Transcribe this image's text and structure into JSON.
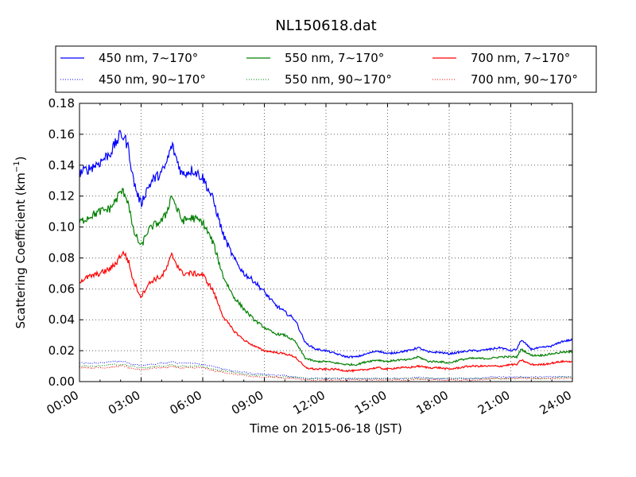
{
  "chart_data": {
    "type": "line",
    "title": "NL150618.dat",
    "xlabel": "Time on 2015-06-18 (JST)",
    "ylabel": {
      "main": "Scattering Coefficient (km",
      "sup": "−1",
      "tail": ")"
    },
    "x_unit": "hours",
    "xlim": [
      0,
      24
    ],
    "ylim": [
      0.0,
      0.18
    ],
    "x_ticks": [
      0,
      3,
      6,
      9,
      12,
      15,
      18,
      21,
      24
    ],
    "x_tick_labels": [
      "00:00",
      "03:00",
      "06:00",
      "09:00",
      "12:00",
      "15:00",
      "18:00",
      "21:00",
      "24:00"
    ],
    "y_ticks": [
      0.0,
      0.02,
      0.04,
      0.06,
      0.08,
      0.1,
      0.12,
      0.14,
      0.16,
      0.18
    ],
    "y_tick_labels": [
      "0.00",
      "0.02",
      "0.04",
      "0.06",
      "0.08",
      "0.10",
      "0.12",
      "0.14",
      "0.16",
      "0.18"
    ],
    "grid": true,
    "legend_position": "top",
    "x": [
      0,
      0.5,
      1.0,
      1.5,
      1.8,
      2.0,
      2.2,
      2.4,
      2.6,
      2.8,
      3.0,
      3.3,
      3.6,
      4.0,
      4.2,
      4.5,
      4.7,
      5.0,
      5.5,
      6.0,
      6.5,
      7.0,
      7.5,
      8.0,
      8.5,
      9.0,
      9.5,
      10.0,
      10.5,
      11.0,
      11.5,
      12.0,
      12.5,
      13.0,
      13.5,
      14.0,
      14.5,
      15.0,
      15.5,
      16.0,
      16.5,
      17.0,
      17.5,
      18.0,
      18.5,
      19.0,
      19.5,
      20.0,
      20.5,
      21.0,
      21.3,
      21.5,
      22.0,
      22.5,
      23.0,
      23.5,
      24.0
    ],
    "series": [
      {
        "name": "450 nm, 7∼170°",
        "color": "#0000ff",
        "style": "solid",
        "values": [
          0.135,
          0.138,
          0.142,
          0.148,
          0.155,
          0.16,
          0.158,
          0.15,
          0.132,
          0.122,
          0.115,
          0.125,
          0.131,
          0.135,
          0.14,
          0.153,
          0.145,
          0.134,
          0.137,
          0.132,
          0.118,
          0.095,
          0.08,
          0.07,
          0.065,
          0.058,
          0.05,
          0.045,
          0.04,
          0.025,
          0.021,
          0.02,
          0.018,
          0.016,
          0.016,
          0.018,
          0.02,
          0.018,
          0.019,
          0.02,
          0.022,
          0.019,
          0.019,
          0.018,
          0.019,
          0.02,
          0.02,
          0.021,
          0.022,
          0.02,
          0.021,
          0.027,
          0.021,
          0.022,
          0.023,
          0.026,
          0.027
        ]
      },
      {
        "name": "550 nm, 7∼170°",
        "color": "#008000",
        "style": "solid",
        "values": [
          0.103,
          0.107,
          0.11,
          0.112,
          0.118,
          0.123,
          0.122,
          0.115,
          0.098,
          0.093,
          0.087,
          0.097,
          0.101,
          0.104,
          0.108,
          0.121,
          0.113,
          0.104,
          0.106,
          0.103,
          0.09,
          0.068,
          0.055,
          0.047,
          0.04,
          0.035,
          0.031,
          0.03,
          0.026,
          0.015,
          0.013,
          0.013,
          0.012,
          0.011,
          0.011,
          0.013,
          0.014,
          0.013,
          0.014,
          0.014,
          0.016,
          0.013,
          0.013,
          0.012,
          0.014,
          0.015,
          0.015,
          0.015,
          0.016,
          0.016,
          0.016,
          0.021,
          0.017,
          0.017,
          0.018,
          0.019,
          0.019
        ]
      },
      {
        "name": "700 nm, 7∼170°",
        "color": "#ff0000",
        "style": "solid",
        "values": [
          0.065,
          0.068,
          0.07,
          0.073,
          0.077,
          0.082,
          0.083,
          0.077,
          0.066,
          0.06,
          0.055,
          0.062,
          0.066,
          0.068,
          0.072,
          0.082,
          0.077,
          0.07,
          0.07,
          0.069,
          0.059,
          0.042,
          0.033,
          0.027,
          0.023,
          0.02,
          0.019,
          0.018,
          0.016,
          0.009,
          0.008,
          0.008,
          0.008,
          0.007,
          0.007,
          0.008,
          0.009,
          0.008,
          0.009,
          0.009,
          0.01,
          0.009,
          0.009,
          0.008,
          0.009,
          0.01,
          0.01,
          0.01,
          0.01,
          0.011,
          0.011,
          0.014,
          0.011,
          0.011,
          0.012,
          0.013,
          0.013
        ]
      },
      {
        "name": "450 nm, 90∼170°",
        "color": "#0000ff",
        "style": "dotted",
        "values": [
          0.012,
          0.012,
          0.012,
          0.013,
          0.013,
          0.013,
          0.013,
          0.012,
          0.011,
          0.011,
          0.01,
          0.011,
          0.011,
          0.012,
          0.012,
          0.013,
          0.012,
          0.012,
          0.012,
          0.011,
          0.01,
          0.008,
          0.007,
          0.006,
          0.005,
          0.005,
          0.004,
          0.004,
          0.003,
          0.002,
          0.002,
          0.002,
          0.002,
          0.002,
          0.002,
          0.002,
          0.002,
          0.002,
          0.002,
          0.002,
          0.003,
          0.002,
          0.002,
          0.002,
          0.002,
          0.002,
          0.002,
          0.003,
          0.003,
          0.003,
          0.003,
          0.003,
          0.003,
          0.003,
          0.003,
          0.003,
          0.003
        ]
      },
      {
        "name": "550 nm, 90∼170°",
        "color": "#008000",
        "style": "dotted",
        "values": [
          0.01,
          0.01,
          0.01,
          0.011,
          0.011,
          0.011,
          0.011,
          0.01,
          0.01,
          0.009,
          0.009,
          0.009,
          0.01,
          0.01,
          0.01,
          0.011,
          0.01,
          0.01,
          0.01,
          0.01,
          0.008,
          0.007,
          0.006,
          0.005,
          0.004,
          0.004,
          0.003,
          0.003,
          0.003,
          0.002,
          0.002,
          0.002,
          0.002,
          0.002,
          0.002,
          0.002,
          0.002,
          0.002,
          0.002,
          0.002,
          0.002,
          0.002,
          0.002,
          0.002,
          0.002,
          0.002,
          0.002,
          0.002,
          0.002,
          0.002,
          0.002,
          0.003,
          0.002,
          0.002,
          0.002,
          0.003,
          0.003
        ]
      },
      {
        "name": "700 nm, 90∼170°",
        "color": "#ff0000",
        "style": "dotted",
        "values": [
          0.009,
          0.009,
          0.009,
          0.009,
          0.01,
          0.01,
          0.01,
          0.009,
          0.008,
          0.008,
          0.008,
          0.008,
          0.009,
          0.009,
          0.009,
          0.01,
          0.009,
          0.009,
          0.009,
          0.009,
          0.007,
          0.006,
          0.005,
          0.004,
          0.003,
          0.003,
          0.003,
          0.002,
          0.002,
          0.001,
          0.001,
          0.001,
          0.001,
          0.001,
          0.001,
          0.001,
          0.001,
          0.001,
          0.001,
          0.001,
          0.002,
          0.001,
          0.001,
          0.001,
          0.001,
          0.001,
          0.001,
          0.002,
          0.002,
          0.002,
          0.002,
          0.002,
          0.002,
          0.002,
          0.002,
          0.002,
          0.002
        ]
      }
    ]
  }
}
